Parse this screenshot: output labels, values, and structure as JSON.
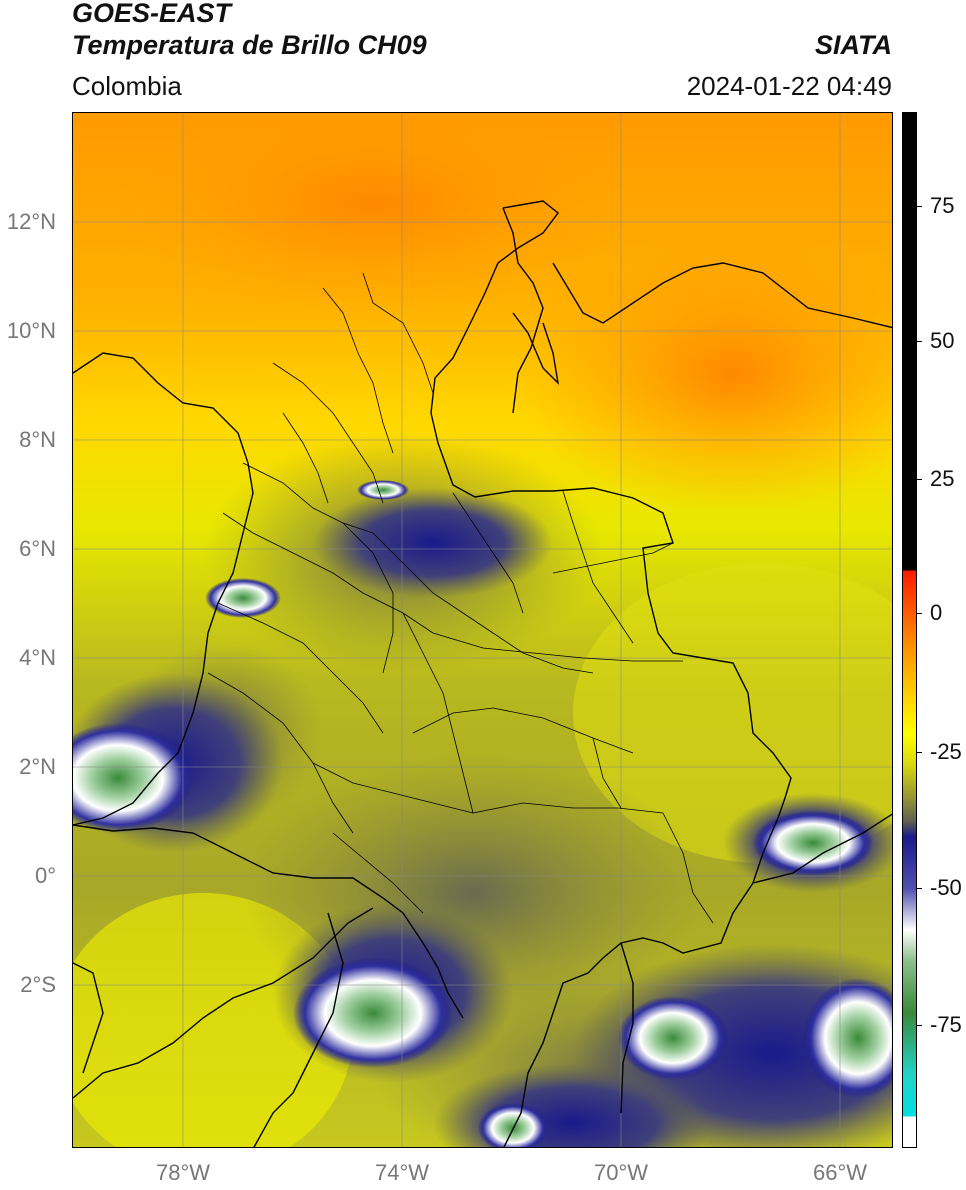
{
  "header": {
    "title_line1": "GOES-EAST",
    "title_line2": "Temperatura de Brillo CH09",
    "region": "Colombia",
    "agency": "SIATA",
    "datetime": "2024-01-22 04:49"
  },
  "map": {
    "extent": {
      "lon_min": -80,
      "lon_max": -65,
      "lat_min": -5,
      "lat_max": 14
    },
    "lat_ticks": [
      {
        "value": 12,
        "label": "12°N"
      },
      {
        "value": 10,
        "label": "10°N"
      },
      {
        "value": 8,
        "label": "8°N"
      },
      {
        "value": 6,
        "label": "6°N"
      },
      {
        "value": 4,
        "label": "4°N"
      },
      {
        "value": 2,
        "label": "2°N"
      },
      {
        "value": 0,
        "label": "0°"
      },
      {
        "value": -2,
        "label": "2°S"
      }
    ],
    "lon_ticks": [
      {
        "value": -78,
        "label": "78°W"
      },
      {
        "value": -74,
        "label": "74°W"
      },
      {
        "value": -70,
        "label": "70°W"
      },
      {
        "value": -66,
        "label": "66°W"
      }
    ]
  },
  "colorbar": {
    "range": [
      -95,
      90
    ],
    "ticks": [
      {
        "value": 75,
        "label": "75"
      },
      {
        "value": 50,
        "label": "50"
      },
      {
        "value": 25,
        "label": "25"
      },
      {
        "value": 0,
        "label": "0"
      },
      {
        "value": -25,
        "label": "-25"
      },
      {
        "value": -50,
        "label": "-50"
      },
      {
        "value": -75,
        "label": "-75"
      }
    ],
    "colors": {
      "black": "#000000",
      "red": "#ff1a00",
      "orange": "#ff9900",
      "yellow": "#ffff00",
      "olive": "#9a9a30",
      "gray": "#606050",
      "navy": "#1a1a8c",
      "white": "#ffffff",
      "green": "#3a8a3a",
      "cyan": "#22d4c8"
    }
  }
}
